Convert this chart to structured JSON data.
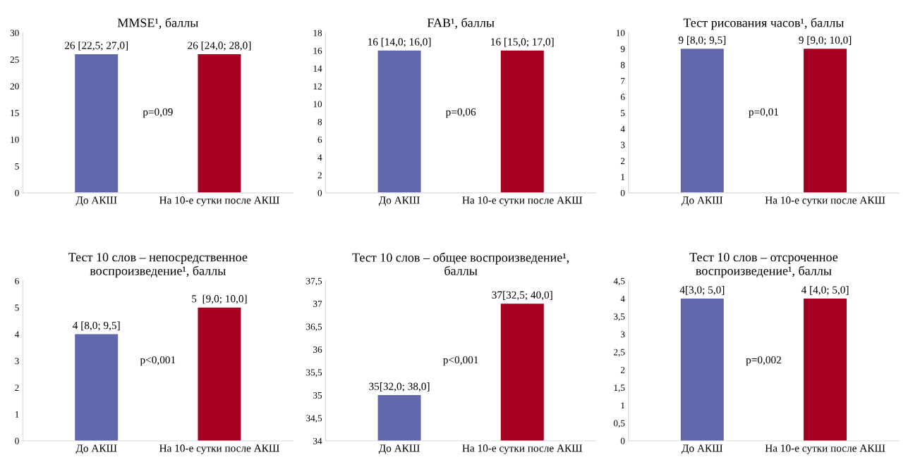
{
  "chart_data": [
    {
      "type": "bar",
      "title": "MMSE¹, баллы",
      "categories": [
        "До АКШ",
        "На 10-е сутки после АКШ"
      ],
      "values": [
        26,
        26
      ],
      "colors": [
        "#6268ac",
        "#a50021"
      ],
      "value_labels": [
        "26 [22,5; 27,0]",
        "26 [24,0; 28,0]"
      ],
      "annotations": [
        "p=0,09"
      ],
      "ylim": [
        0,
        30
      ],
      "yticks": [
        0,
        5,
        10,
        15,
        20,
        25,
        30
      ],
      "grid": false,
      "legend": false
    },
    {
      "type": "bar",
      "title": "FAB¹, баллы",
      "categories": [
        "До АКШ",
        "На 10-е сутки после АКШ"
      ],
      "values": [
        16,
        16
      ],
      "colors": [
        "#6268ac",
        "#a50021"
      ],
      "value_labels": [
        "16 [14,0; 16,0]",
        "16 [15,0; 17,0]"
      ],
      "annotations": [
        "p=0,06"
      ],
      "ylim": [
        0,
        18
      ],
      "yticks": [
        0,
        2,
        4,
        6,
        8,
        10,
        12,
        14,
        16,
        18
      ],
      "grid": false,
      "legend": false
    },
    {
      "type": "bar",
      "title": "Тест рисования часов¹, баллы",
      "categories": [
        "До АКШ",
        "На 10-е сутки после АКШ"
      ],
      "values": [
        9,
        9
      ],
      "colors": [
        "#6268ac",
        "#a50021"
      ],
      "value_labels": [
        "9 [8,0; 9,5]",
        "9 [9,0; 10,0]"
      ],
      "annotations": [
        "p=0,01"
      ],
      "ylim": [
        0,
        10
      ],
      "yticks": [
        0,
        1,
        2,
        3,
        4,
        5,
        6,
        7,
        8,
        9,
        10
      ],
      "grid": false,
      "legend": false
    },
    {
      "type": "bar",
      "title": "Тест 10 слов – непосредственное\nвоспроизведение¹, баллы",
      "categories": [
        "До АКШ",
        "На 10-е сутки после АКШ"
      ],
      "values": [
        4,
        5
      ],
      "colors": [
        "#6268ac",
        "#a50021"
      ],
      "value_labels": [
        "4 [8,0; 9,5]",
        "5  [9,0; 10,0]"
      ],
      "annotations": [
        "p<0,001"
      ],
      "ylim": [
        0,
        6
      ],
      "yticks": [
        0,
        1,
        2,
        3,
        4,
        5,
        6
      ],
      "grid": false,
      "legend": false
    },
    {
      "type": "bar",
      "title": "Тест 10 слов – общее воспроизведение¹,\nбаллы",
      "categories": [
        "До АКШ",
        "На 10-е сутки после АКШ"
      ],
      "values": [
        35,
        37
      ],
      "colors": [
        "#6268ac",
        "#a50021"
      ],
      "value_labels": [
        "35[32,0; 38,0]",
        "37[32,5; 40,0]"
      ],
      "annotations": [
        "p<0,001"
      ],
      "ylim": [
        34,
        37.5
      ],
      "yticks": [
        34,
        {
          "value": 34.5,
          "label": "34,5"
        },
        35,
        {
          "value": 35.5,
          "label": "35,5"
        },
        36,
        {
          "value": 36.5,
          "label": "36,5"
        },
        37,
        {
          "value": 37.5,
          "label": "37,5"
        }
      ],
      "grid": false,
      "legend": false
    },
    {
      "type": "bar",
      "title": "Тест 10 слов – отсроченное\nвоспроизведение¹, баллы",
      "categories": [
        "До АКШ",
        "На 10-е сутки после АКШ"
      ],
      "values": [
        4,
        4
      ],
      "colors": [
        "#6268ac",
        "#a50021"
      ],
      "value_labels": [
        "4[3,0; 5,0]",
        "4 [4,0; 5,0]"
      ],
      "annotations": [
        "p=0,002"
      ],
      "ylim": [
        0,
        4.5
      ],
      "yticks": [
        0,
        {
          "value": 0.5,
          "label": "0,5"
        },
        1,
        {
          "value": 1.5,
          "label": "1,5"
        },
        2,
        {
          "value": 2.5,
          "label": "2,5"
        },
        3,
        {
          "value": 3.5,
          "label": "3,5"
        },
        4,
        {
          "value": 4.5,
          "label": "4,5"
        }
      ],
      "grid": false,
      "legend": false
    }
  ]
}
